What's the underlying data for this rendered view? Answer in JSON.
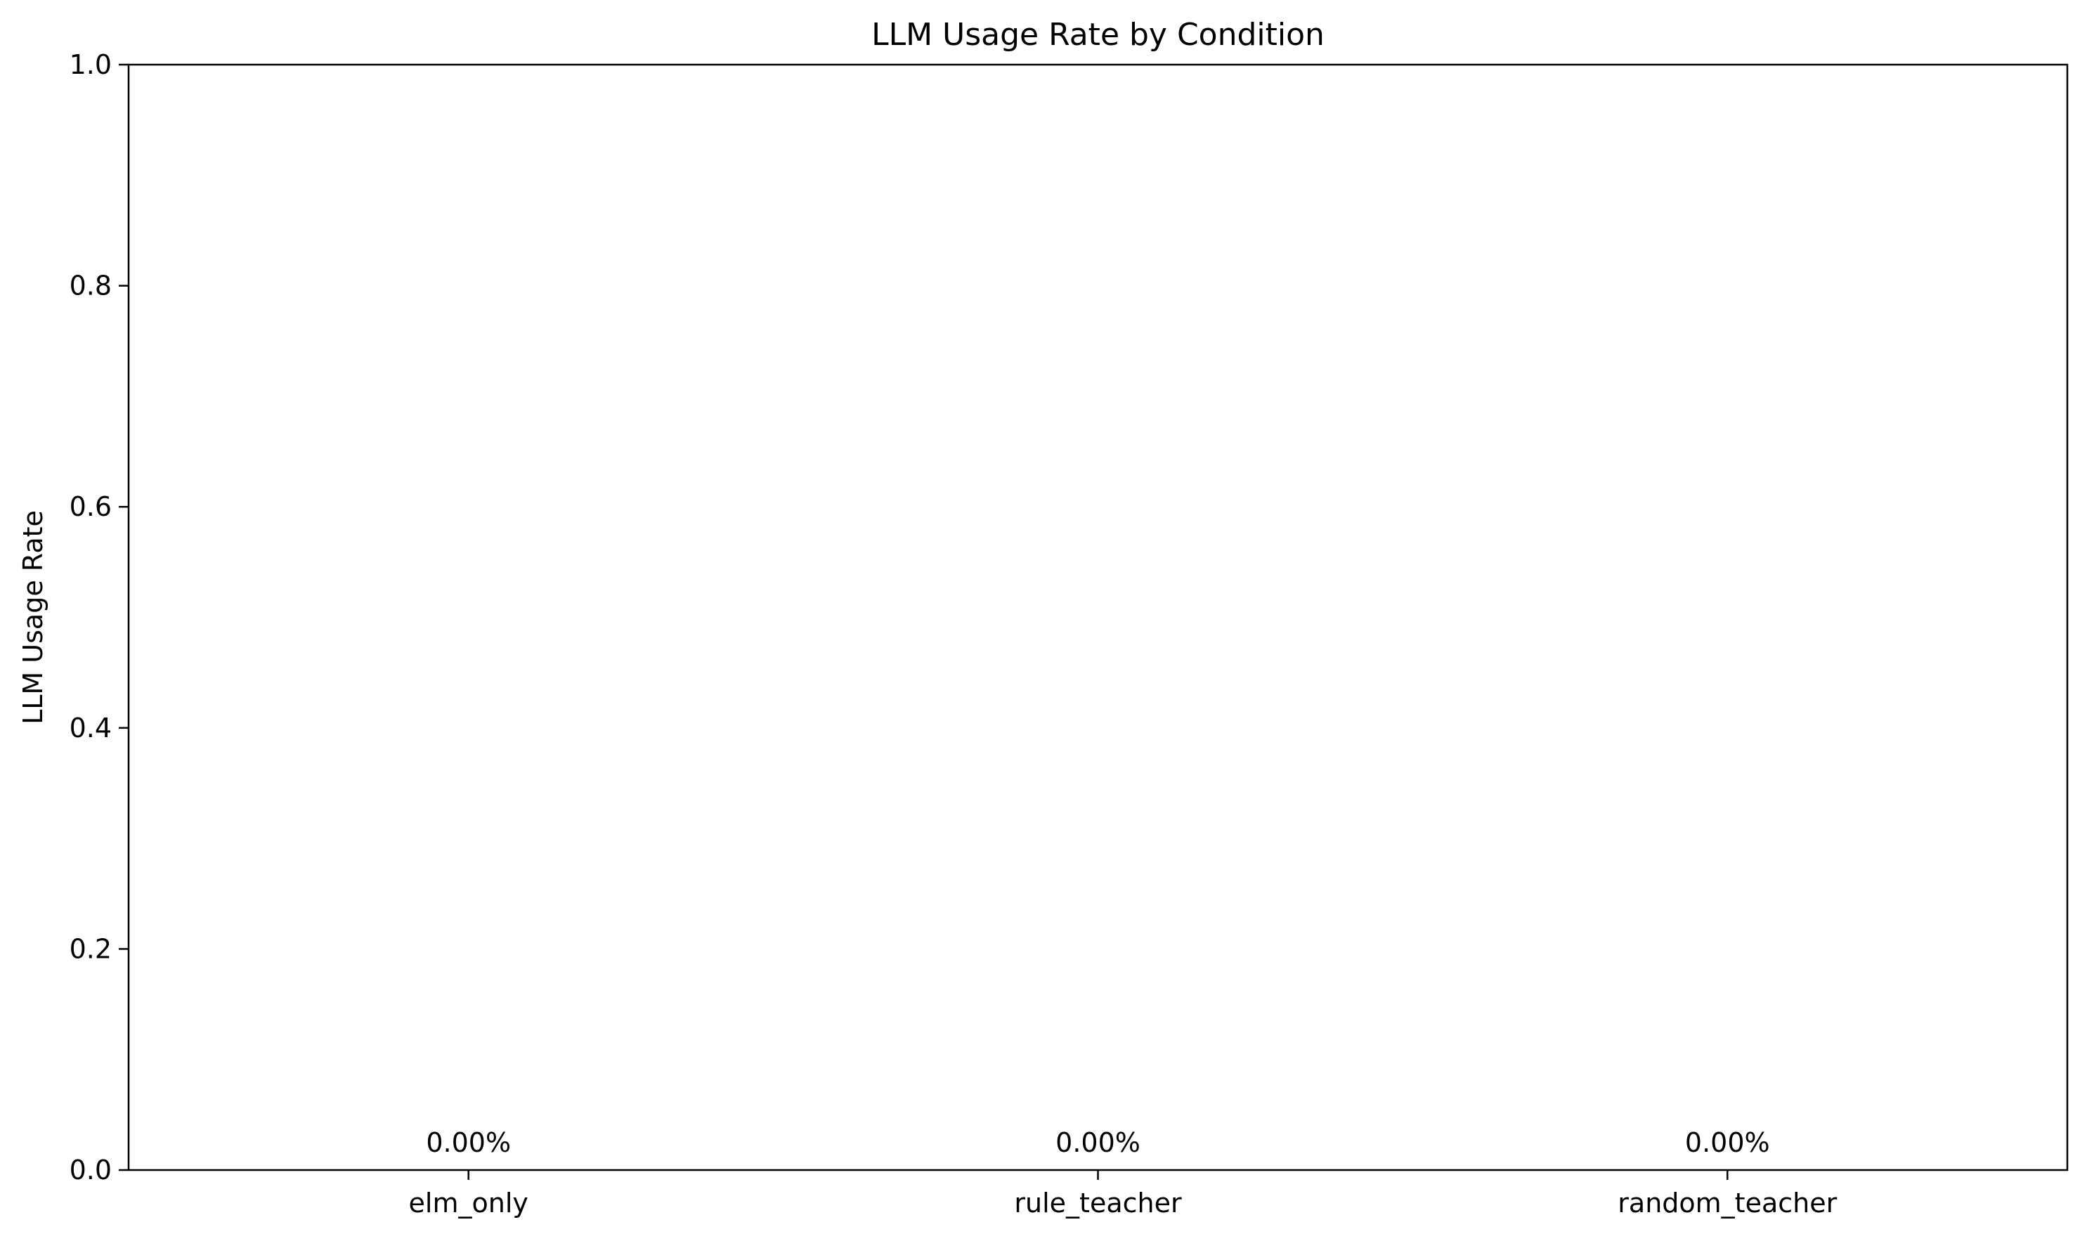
{
  "chart_data": {
    "type": "bar",
    "title": "LLM Usage Rate by Condition",
    "xlabel": "",
    "ylabel": "LLM Usage Rate",
    "categories": [
      "elm_only",
      "rule_teacher",
      "random_teacher"
    ],
    "values": [
      0.0,
      0.0,
      0.0
    ],
    "data_labels": [
      "0.00%",
      "0.00%",
      "0.00%"
    ],
    "ylim": [
      0,
      1.0
    ],
    "yticks": [
      0.0,
      0.2,
      0.4,
      0.6,
      0.8,
      1.0
    ],
    "ytick_labels": [
      "0.0",
      "0.2",
      "0.4",
      "0.6",
      "0.8",
      "1.0"
    ],
    "grid": false,
    "legend": "none",
    "colors": {
      "bar": "#1f77b4",
      "axis": "#000000",
      "background": "#ffffff"
    }
  }
}
